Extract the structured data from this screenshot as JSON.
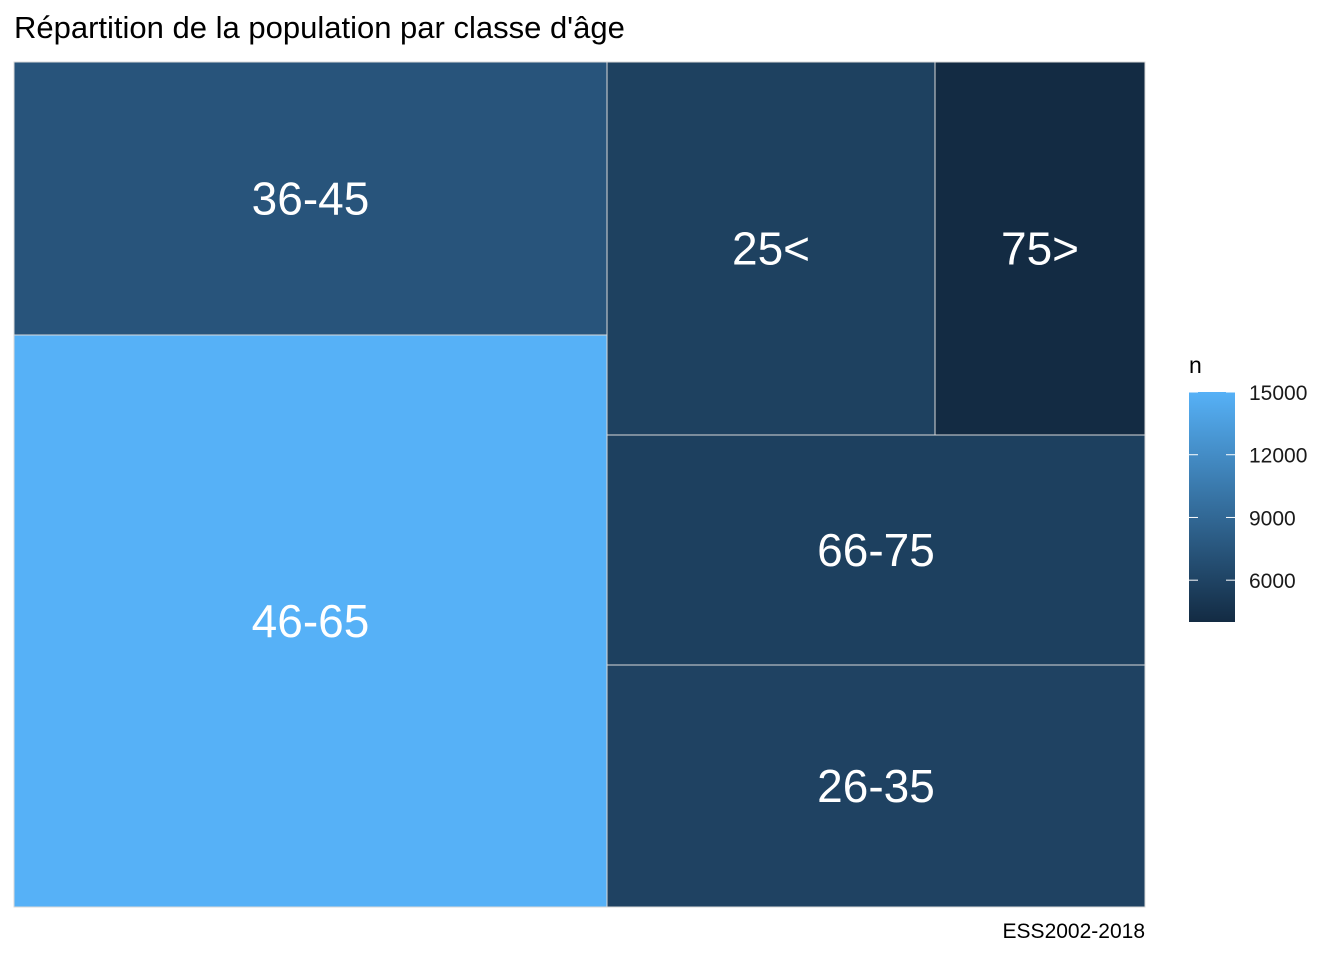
{
  "title": "Répartition de la population par classe d'âge",
  "caption": "ESS2002-2018",
  "colors": {
    "low": "#132B43",
    "high": "#56B1F7",
    "border": "#d9d9d9"
  },
  "chart_data": {
    "type": "treemap",
    "title": "Répartition de la population par classe d'âge",
    "categories": [
      "46-65",
      "36-45",
      "25<",
      "75>",
      "66-75",
      "26-35"
    ],
    "values": [
      15000,
      7400,
      5800,
      4000,
      5700,
      5900
    ],
    "legend": {
      "title": "n",
      "ticks": [
        15000,
        12000,
        9000,
        6000
      ],
      "range": [
        4000,
        15000
      ],
      "placement": "right"
    }
  }
}
